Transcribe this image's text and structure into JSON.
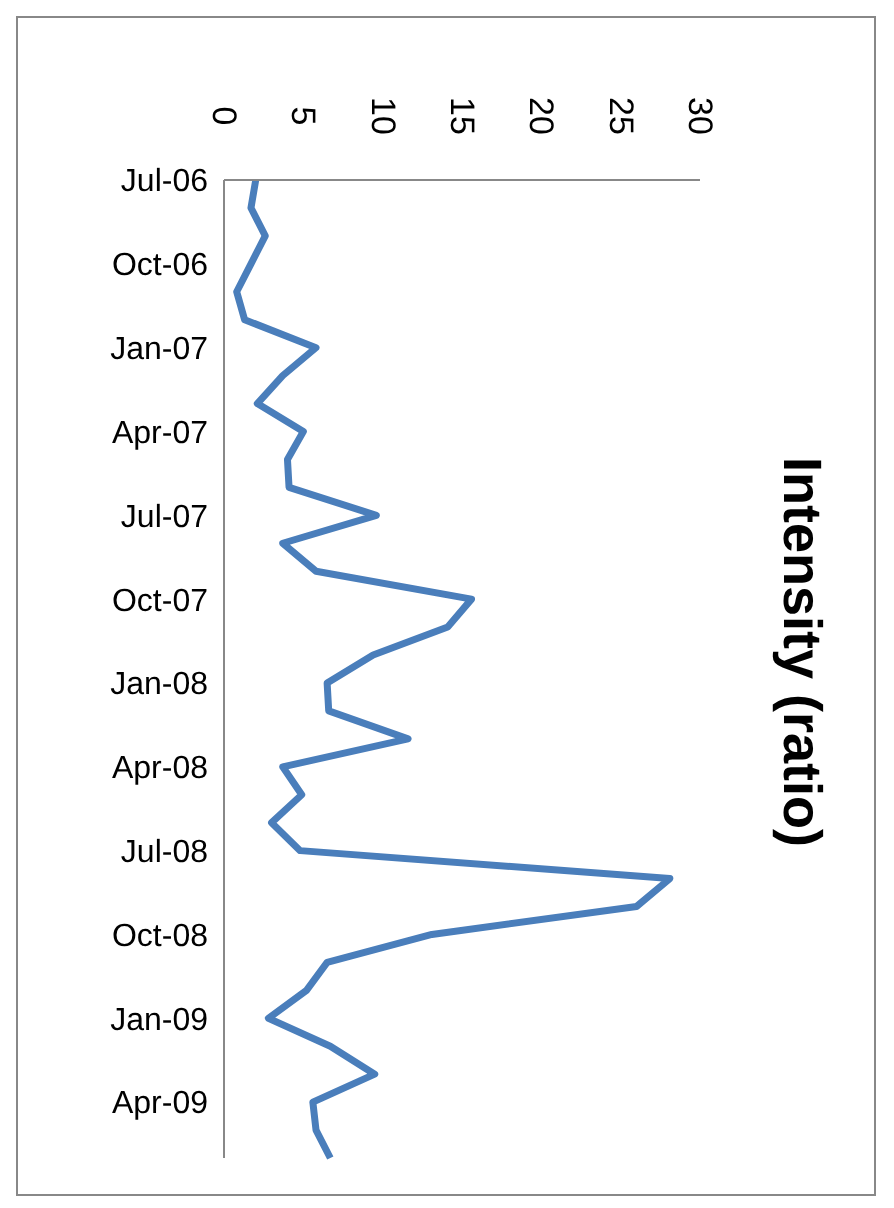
{
  "chart_data": {
    "type": "line",
    "title": "Intensity (ratio)",
    "orientation": "horizontal",
    "categories": [
      "Jul-06",
      null,
      null,
      "Oct-06",
      null,
      null,
      "Jan-07",
      null,
      null,
      "Apr-07",
      null,
      null,
      "Jul-07",
      null,
      null,
      "Oct-07",
      null,
      null,
      "Jan-08",
      null,
      null,
      "Apr-08",
      null,
      null,
      "Jul-08",
      null,
      null,
      "Oct-08",
      null,
      null,
      "Jan-09",
      null,
      null,
      "Apr-09",
      null,
      null
    ],
    "series": [
      {
        "color": "#4a7ebb",
        "values": [
          2.0,
          1.7,
          2.6,
          1.7,
          0.8,
          1.3,
          5.8,
          3.7,
          2.1,
          5.0,
          4.0,
          4.1,
          9.6,
          3.7,
          5.8,
          15.6,
          14.1,
          9.4,
          6.5,
          6.6,
          11.6,
          3.7,
          4.9,
          3.0,
          4.8,
          28.1,
          26.0,
          13.1,
          6.5,
          5.2,
          2.8,
          6.7,
          9.5,
          5.6,
          5.8,
          6.7
        ]
      }
    ],
    "xlim": [
      0,
      30
    ],
    "xticks": [
      0,
      5,
      10,
      15,
      20,
      25,
      30
    ]
  }
}
